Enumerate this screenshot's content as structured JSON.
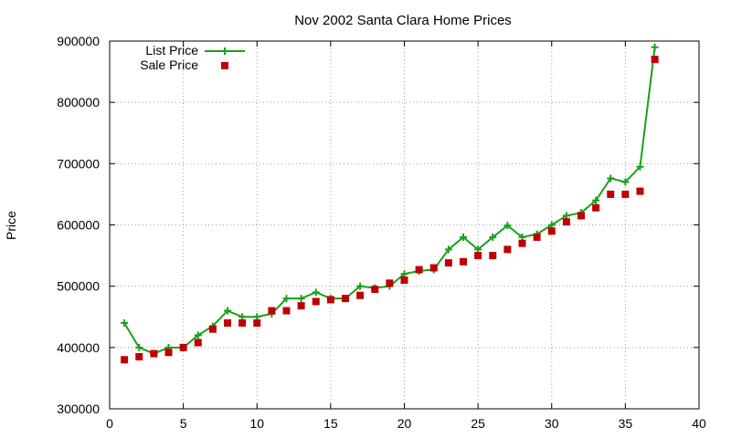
{
  "colors": {
    "list": "#1aa01a",
    "sale": "#c00000"
  },
  "chart_data": {
    "type": "line",
    "title": "Nov 2002 Santa Clara Home Prices",
    "xlabel": "",
    "ylabel": "Price",
    "xlim": [
      0,
      40
    ],
    "ylim": [
      300000,
      900000
    ],
    "xticks": [
      0,
      5,
      10,
      15,
      20,
      25,
      30,
      35,
      40
    ],
    "yticks": [
      300000,
      400000,
      500000,
      600000,
      700000,
      800000,
      900000
    ],
    "grid": true,
    "legend_position": "top-left",
    "series": [
      {
        "name": "List Price",
        "style": "line-cross",
        "x": [
          1,
          2,
          3,
          4,
          5,
          6,
          7,
          8,
          9,
          10,
          11,
          12,
          13,
          14,
          15,
          16,
          17,
          18,
          19,
          20,
          21,
          22,
          23,
          24,
          25,
          26,
          27,
          28,
          29,
          30,
          31,
          32,
          33,
          34,
          35,
          36,
          37
        ],
        "y": [
          440000,
          400000,
          390000,
          400000,
          400000,
          420000,
          435000,
          460000,
          450000,
          450000,
          455000,
          480000,
          480000,
          490000,
          480000,
          480000,
          500000,
          497000,
          500000,
          520000,
          525000,
          527000,
          560000,
          580000,
          560000,
          580000,
          599000,
          580000,
          585000,
          600000,
          615000,
          620000,
          640000,
          676000,
          670000,
          695000,
          890000
        ]
      },
      {
        "name": "Sale Price",
        "style": "square",
        "x": [
          1,
          2,
          3,
          4,
          5,
          6,
          7,
          8,
          9,
          10,
          11,
          12,
          13,
          14,
          15,
          16,
          17,
          18,
          19,
          20,
          21,
          22,
          23,
          24,
          25,
          26,
          27,
          28,
          29,
          30,
          31,
          32,
          33,
          34,
          35,
          36,
          37
        ],
        "y": [
          380000,
          385000,
          390000,
          392000,
          400000,
          408000,
          430000,
          440000,
          440000,
          440000,
          460000,
          460000,
          468000,
          475000,
          478000,
          480000,
          485000,
          495000,
          505000,
          510000,
          527000,
          530000,
          538000,
          540000,
          550000,
          550000,
          560000,
          570000,
          580000,
          590000,
          605000,
          615000,
          628000,
          650000,
          650000,
          655000,
          870000
        ]
      }
    ]
  }
}
